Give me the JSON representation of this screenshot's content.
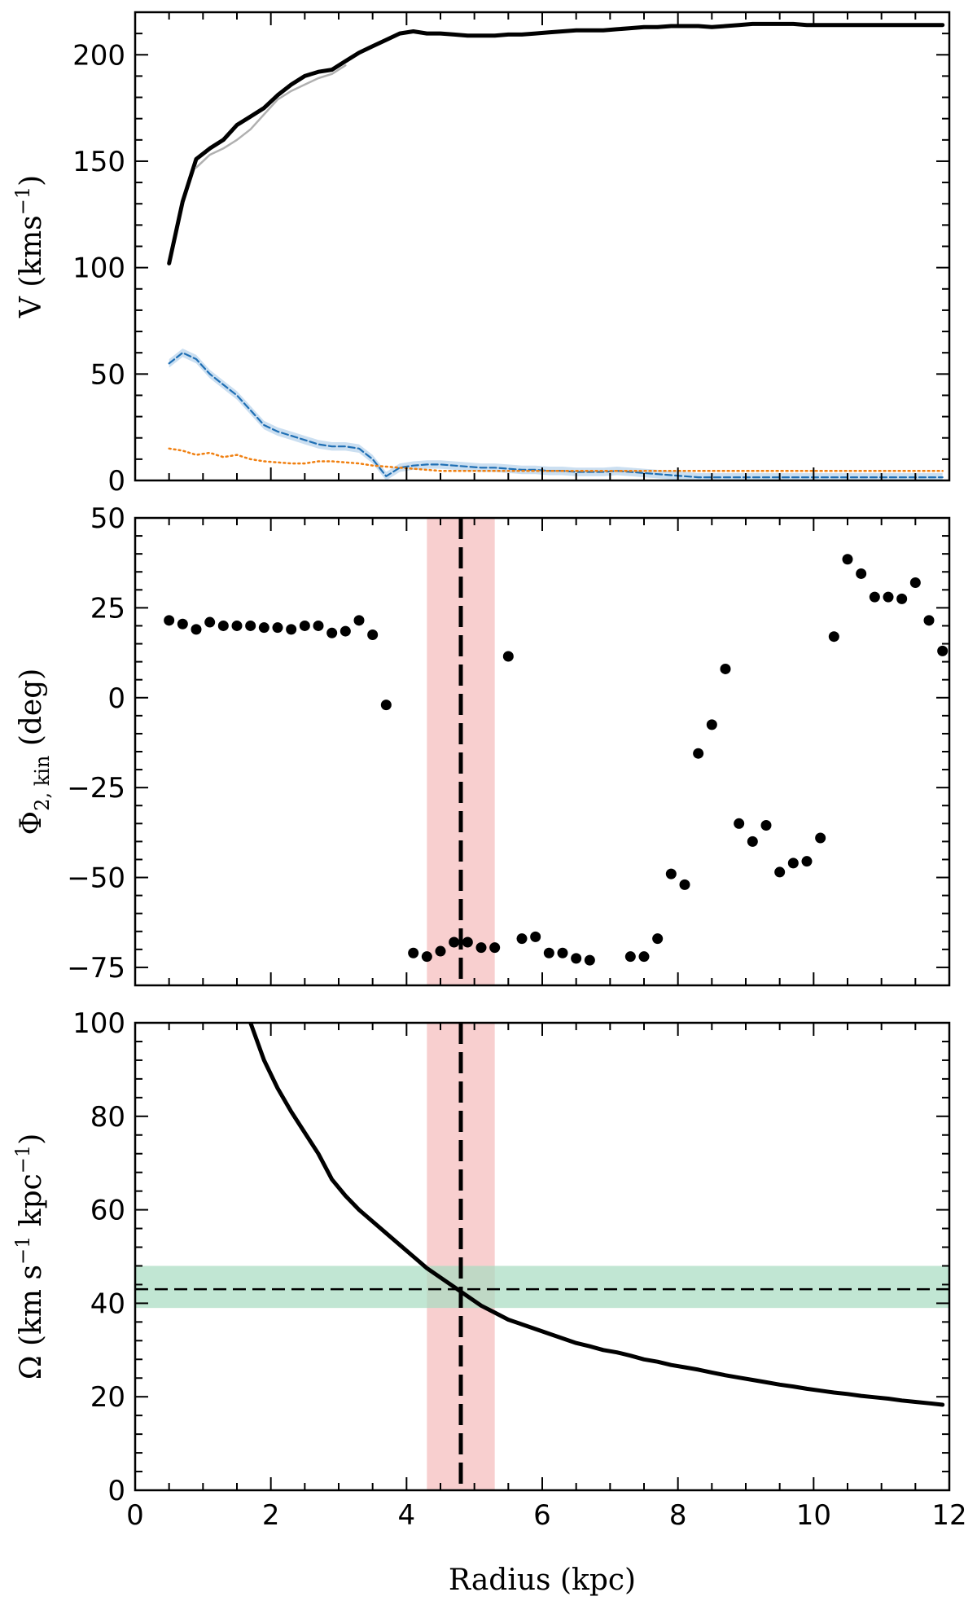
{
  "colors": {
    "rotation_curve": "#000000",
    "model_gray": "#b0b0b0",
    "blue_dashed": "#1f6fb4",
    "blue_band": "#a9c9e8",
    "orange_dotted": "#f07f0f",
    "points": "#000000",
    "red_band": "#f4b6b6",
    "green_band": "#a6dcc0"
  },
  "shared": {
    "xlabel": "Radius (kpc)",
    "xlim": [
      0,
      12
    ],
    "xticks": [
      "0",
      "2",
      "4",
      "6",
      "8",
      "10",
      "12"
    ],
    "xtick_values": [
      0,
      2,
      4,
      6,
      8,
      10,
      12
    ],
    "corotation_radius": 4.8,
    "corotation_band": [
      4.3,
      5.3
    ]
  },
  "chart_data": [
    {
      "type": "line",
      "panel": "top",
      "ylabel": {
        "main": "V (kms",
        "sup": "−1",
        "tail": ")"
      },
      "ylim": [
        0,
        220
      ],
      "yticks": [
        "0",
        "50",
        "100",
        "150",
        "200"
      ],
      "ytick_values": [
        0,
        50,
        100,
        150,
        200
      ],
      "series": [
        {
          "style": "solid-thick",
          "x": [
            0.5,
            0.7,
            0.9,
            1.1,
            1.3,
            1.5,
            1.7,
            1.9,
            2.1,
            2.3,
            2.5,
            2.7,
            2.9,
            3.1,
            3.3,
            3.5,
            3.7,
            3.9,
            4.1,
            4.3,
            4.5,
            4.7,
            4.9,
            5.1,
            5.3,
            5.5,
            5.7,
            5.9,
            6.1,
            6.3,
            6.5,
            6.7,
            6.9,
            7.1,
            7.3,
            7.5,
            7.7,
            7.9,
            8.1,
            8.3,
            8.5,
            8.7,
            8.9,
            9.1,
            9.3,
            9.5,
            9.7,
            9.9,
            10.1,
            10.3,
            10.5,
            10.7,
            10.9,
            11.1,
            11.3,
            11.5,
            11.7,
            11.9
          ],
          "y": [
            102,
            131,
            151,
            156,
            160,
            167,
            171,
            175,
            181,
            186,
            190,
            192,
            193,
            197,
            201,
            204,
            207,
            210,
            211,
            210,
            210,
            209.5,
            209,
            209,
            209,
            209.5,
            209.5,
            210,
            210.5,
            211,
            211.5,
            211.5,
            211.5,
            212,
            212.5,
            213,
            213,
            213.5,
            213.5,
            213.5,
            213,
            213.5,
            214,
            214.5,
            214.5,
            214.5,
            214.5,
            214,
            214,
            214,
            214,
            214,
            214,
            214,
            214,
            214,
            214,
            214
          ]
        },
        {
          "style": "solid-gray",
          "x": [
            0.9,
            1.1,
            1.3,
            1.5,
            1.7,
            1.9,
            2.1,
            2.3,
            2.5,
            2.7,
            2.9,
            3.1
          ],
          "y": [
            147,
            153,
            156,
            160,
            165,
            172,
            179,
            183,
            186,
            189,
            191,
            195
          ]
        },
        {
          "style": "dashed-blue",
          "x": [
            0.5,
            0.7,
            0.9,
            1.1,
            1.3,
            1.5,
            1.7,
            1.9,
            2.1,
            2.3,
            2.5,
            2.7,
            2.9,
            3.1,
            3.3,
            3.5,
            3.7,
            3.9,
            4.1,
            4.3,
            4.5,
            4.7,
            4.9,
            5.1,
            5.3,
            5.5,
            5.7,
            5.9,
            6.1,
            6.3,
            6.5,
            6.7,
            6.9,
            7.1,
            7.3,
            7.5,
            7.7,
            7.9,
            8.1,
            8.3,
            8.5,
            8.7,
            8.9,
            9.1,
            9.3,
            9.5,
            9.7,
            9.9,
            10.1,
            10.3,
            10.5,
            10.7,
            10.9,
            11.1,
            11.3,
            11.5,
            11.7,
            11.9
          ],
          "y": [
            55,
            60,
            57,
            50,
            45,
            40,
            33,
            26,
            23,
            21,
            19,
            17,
            16,
            16,
            15,
            10,
            2,
            6,
            7,
            7.5,
            7.5,
            7,
            6.5,
            6,
            6,
            5.5,
            5,
            5,
            4.5,
            4.5,
            4,
            4,
            4,
            4.5,
            4,
            3.5,
            3,
            2.5,
            2,
            1.5,
            1.5,
            1.5,
            1.5,
            1.5,
            1.5,
            1.5,
            1.5,
            1.5,
            1.5,
            1.5,
            1.5,
            1.5,
            1.5,
            1.5,
            1.5,
            1.5,
            1.5,
            1.5
          ]
        },
        {
          "style": "dotted-orange",
          "x": [
            0.5,
            0.7,
            0.9,
            1.1,
            1.3,
            1.5,
            1.7,
            1.9,
            2.1,
            2.3,
            2.5,
            2.7,
            2.9,
            3.1,
            3.3,
            3.5,
            3.7,
            3.9,
            4.1,
            4.3,
            4.5,
            5.0,
            5.5,
            6.0,
            6.5,
            7.0,
            7.5,
            8.0,
            8.5,
            9.0,
            9.5,
            10.0,
            10.5,
            11.0,
            11.5,
            11.9
          ],
          "y": [
            15,
            14,
            12,
            13,
            11,
            12,
            10,
            9,
            8.5,
            8,
            8,
            9,
            9,
            8.5,
            8,
            7,
            6.5,
            6,
            5.5,
            5,
            4.5,
            4.5,
            4.5,
            4.5,
            4.5,
            4.5,
            4.5,
            4.5,
            4.5,
            4.5,
            4.5,
            4.5,
            4.5,
            4.5,
            4.5,
            4.5
          ]
        }
      ]
    },
    {
      "type": "scatter",
      "panel": "middle",
      "ylabel": {
        "main": "Φ",
        "sub": "2, kin",
        "tail": " (deg)"
      },
      "ylim": [
        -80,
        50
      ],
      "yticks": [
        "−75",
        "−50",
        "−25",
        "0",
        "25",
        "50"
      ],
      "ytick_values": [
        -75,
        -50,
        -25,
        0,
        25,
        50
      ],
      "points": [
        [
          0.5,
          21.5
        ],
        [
          0.7,
          20.5
        ],
        [
          0.9,
          19
        ],
        [
          1.1,
          21
        ],
        [
          1.3,
          20
        ],
        [
          1.5,
          20
        ],
        [
          1.7,
          20
        ],
        [
          1.9,
          19.5
        ],
        [
          2.1,
          19.5
        ],
        [
          2.3,
          19
        ],
        [
          2.5,
          20
        ],
        [
          2.7,
          20
        ],
        [
          2.9,
          18
        ],
        [
          3.1,
          18.5
        ],
        [
          3.3,
          21.5
        ],
        [
          3.5,
          17.5
        ],
        [
          3.7,
          -2
        ],
        [
          4.1,
          -71
        ],
        [
          4.3,
          -72
        ],
        [
          4.5,
          -70.5
        ],
        [
          4.7,
          -68
        ],
        [
          4.9,
          -68
        ],
        [
          5.1,
          -69.5
        ],
        [
          5.3,
          -69.5
        ],
        [
          5.5,
          11.5
        ],
        [
          5.7,
          -67
        ],
        [
          5.9,
          -66.5
        ],
        [
          6.1,
          -71
        ],
        [
          6.3,
          -71
        ],
        [
          6.5,
          -72.5
        ],
        [
          6.7,
          -73
        ],
        [
          7.3,
          -72
        ],
        [
          7.5,
          -72
        ],
        [
          7.7,
          -67
        ],
        [
          7.9,
          -49
        ],
        [
          8.1,
          -52
        ],
        [
          8.3,
          -15.5
        ],
        [
          8.5,
          -7.5
        ],
        [
          8.7,
          8
        ],
        [
          8.9,
          -35
        ],
        [
          9.1,
          -40
        ],
        [
          9.3,
          -35.5
        ],
        [
          9.5,
          -48.5
        ],
        [
          9.7,
          -46
        ],
        [
          9.9,
          -45.5
        ],
        [
          10.1,
          -39
        ],
        [
          10.3,
          17
        ],
        [
          10.5,
          38.5
        ],
        [
          10.7,
          34.5
        ],
        [
          10.9,
          28
        ],
        [
          11.1,
          28
        ],
        [
          11.3,
          27.5
        ],
        [
          11.5,
          32
        ],
        [
          11.7,
          21.5
        ],
        [
          11.9,
          13
        ]
      ]
    },
    {
      "type": "line",
      "panel": "bottom",
      "ylabel": {
        "main": "Ω (km s",
        "sup1": "−1",
        "mid": " kpc",
        "sup2": "−1",
        "tail": ")"
      },
      "ylim": [
        0,
        100
      ],
      "yticks": [
        "0",
        "20",
        "40",
        "60",
        "80",
        "100"
      ],
      "ytick_values": [
        0,
        20,
        40,
        60,
        80,
        100
      ],
      "pattern_speed": 43,
      "pattern_speed_band": [
        39,
        48
      ],
      "series": [
        {
          "style": "solid-thick",
          "x": [
            1.7,
            1.9,
            2.1,
            2.3,
            2.5,
            2.7,
            2.9,
            3.1,
            3.3,
            3.5,
            3.7,
            3.9,
            4.1,
            4.3,
            4.5,
            4.7,
            4.9,
            5.1,
            5.3,
            5.5,
            5.7,
            5.9,
            6.1,
            6.3,
            6.5,
            6.7,
            6.9,
            7.1,
            7.3,
            7.5,
            7.7,
            7.9,
            8.1,
            8.3,
            8.5,
            8.7,
            8.9,
            9.1,
            9.3,
            9.5,
            9.7,
            9.9,
            10.1,
            10.3,
            10.5,
            10.7,
            10.9,
            11.1,
            11.3,
            11.5,
            11.7,
            11.9
          ],
          "y": [
            100,
            92,
            86,
            81,
            76.5,
            72,
            66.5,
            63,
            60,
            57.5,
            55,
            52.5,
            50,
            47.5,
            45.5,
            43.5,
            41.5,
            39.5,
            38,
            36.5,
            35.5,
            34.5,
            33.5,
            32.5,
            31.5,
            30.8,
            30,
            29.5,
            28.8,
            28,
            27.5,
            26.8,
            26.3,
            25.8,
            25.2,
            24.6,
            24.1,
            23.6,
            23.1,
            22.6,
            22.2,
            21.7,
            21.3,
            20.9,
            20.6,
            20.2,
            19.9,
            19.6,
            19.2,
            18.9,
            18.6,
            18.3
          ]
        }
      ]
    }
  ]
}
